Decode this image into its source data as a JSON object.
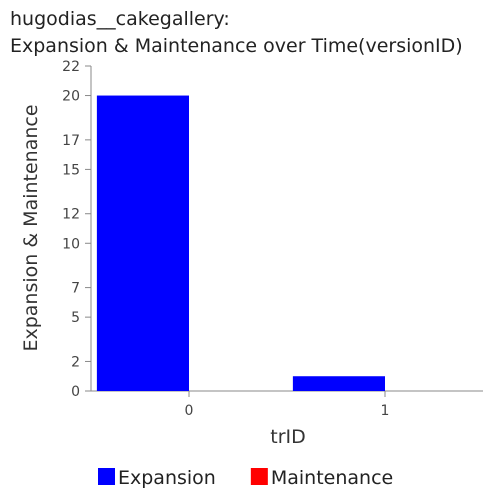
{
  "chart_data": {
    "type": "bar",
    "title_line1": "hugodias__cakegallery:",
    "title_line2": "Expansion & Maintenance over Time(versionID)",
    "xlabel": "trID",
    "ylabel": "Expansion & Maintenance",
    "categories": [
      "0",
      "1"
    ],
    "series": [
      {
        "name": "Expansion",
        "color": "#0000ff",
        "values": [
          20,
          1
        ]
      },
      {
        "name": "Maintenance",
        "color": "#ff0000",
        "values": [
          0,
          0
        ]
      }
    ],
    "ylim": [
      0,
      22
    ],
    "yticks": [
      0,
      2,
      5,
      7,
      10,
      12,
      15,
      17,
      20,
      22
    ],
    "grid": false,
    "legend_position": "bottom"
  }
}
